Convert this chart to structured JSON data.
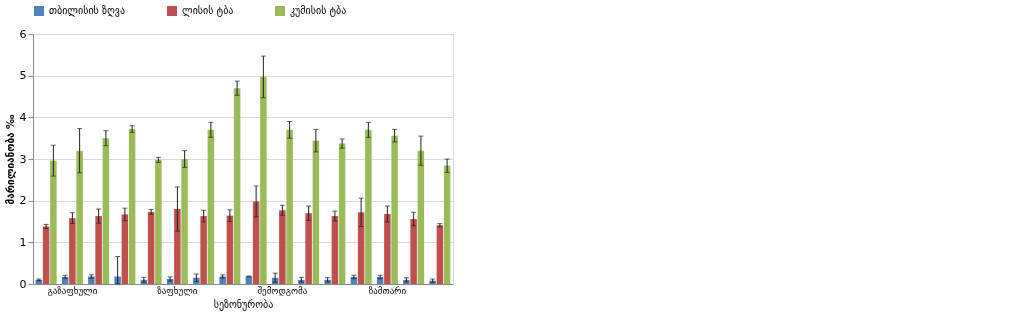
{
  "chart_data": {
    "type": "bar",
    "xlabel": "სეზონურობა",
    "ylabel": "მარილიანობა ‰",
    "categories": [
      null,
      "გაზაფხული",
      null,
      null,
      null,
      "ზაფხული",
      null,
      null,
      null,
      "შემოდგომა",
      null,
      null,
      null,
      "ზამთარი",
      null,
      null
    ],
    "series": [
      {
        "name": "თბილისის ზღვა",
        "color": "#4f81bd",
        "values": [
          0.1,
          0.17,
          0.18,
          0.18,
          0.1,
          0.12,
          0.15,
          0.18,
          0.18,
          0.15,
          0.1,
          0.1,
          0.17,
          0.17,
          0.1,
          0.08
        ],
        "errors": [
          0.02,
          0.04,
          0.04,
          [
            0.0,
            0.66
          ],
          0.06,
          0.05,
          0.09,
          0.04,
          0.01,
          0.11,
          0.06,
          0.05,
          0.04,
          0.04,
          0.05,
          0.04
        ]
      },
      {
        "name": "ლისის ტბა",
        "color": "#c0504d",
        "values": [
          1.38,
          1.58,
          1.63,
          1.67,
          1.73,
          1.8,
          1.63,
          1.64,
          1.98,
          1.77,
          1.7,
          1.63,
          1.72,
          1.68,
          1.56,
          1.41
        ],
        "errors": [
          0.05,
          0.13,
          0.17,
          0.15,
          0.06,
          0.53,
          0.14,
          0.14,
          0.37,
          0.12,
          0.17,
          0.12,
          0.34,
          0.19,
          0.16,
          0.04
        ]
      },
      {
        "name": "კუმისის ტბა",
        "color": "#9bbb59",
        "values": [
          2.96,
          3.2,
          3.5,
          3.72,
          2.98,
          3.0,
          3.7,
          4.7,
          4.97,
          3.7,
          3.44,
          3.37,
          3.7,
          3.56,
          3.2,
          2.84
        ],
        "errors": [
          0.37,
          0.53,
          0.18,
          0.08,
          0.06,
          0.2,
          0.18,
          0.17,
          0.5,
          0.2,
          0.27,
          0.11,
          0.18,
          0.15,
          0.35,
          0.16
        ]
      }
    ],
    "ylim": [
      0,
      6
    ],
    "yticks": [
      0,
      1,
      2,
      3,
      4,
      5,
      6
    ],
    "grid": "y",
    "legend": "top"
  }
}
